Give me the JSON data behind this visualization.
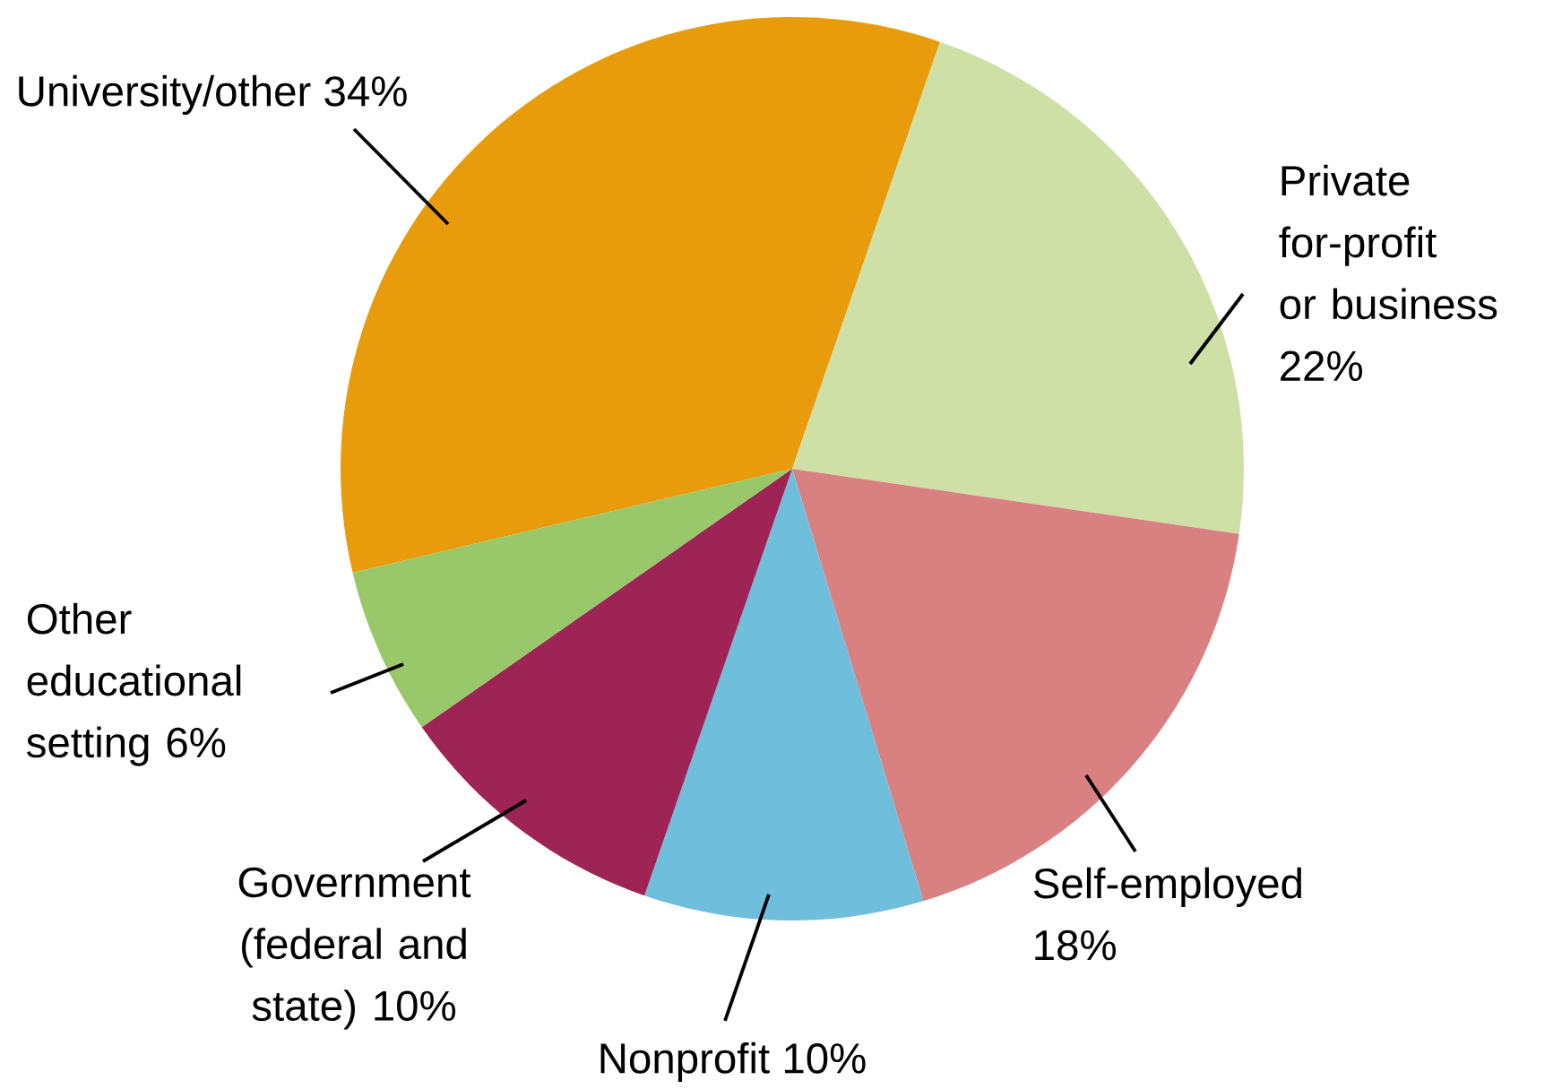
{
  "chart_data": {
    "type": "pie",
    "categories": [
      "University/other",
      "Private for-profit or business",
      "Self-employed",
      "Nonprofit",
      "Government (federal and state)",
      "Other educational setting"
    ],
    "values": [
      34,
      22,
      18,
      10,
      10,
      6
    ],
    "value_labels": [
      "34%",
      "22%",
      "18%",
      "10%",
      "10%",
      "6%"
    ],
    "colors": [
      "#e89c0c",
      "#cfe0a6",
      "#d98080",
      "#6fbfdc",
      "#9e2456",
      "#98c86a"
    ]
  }
}
